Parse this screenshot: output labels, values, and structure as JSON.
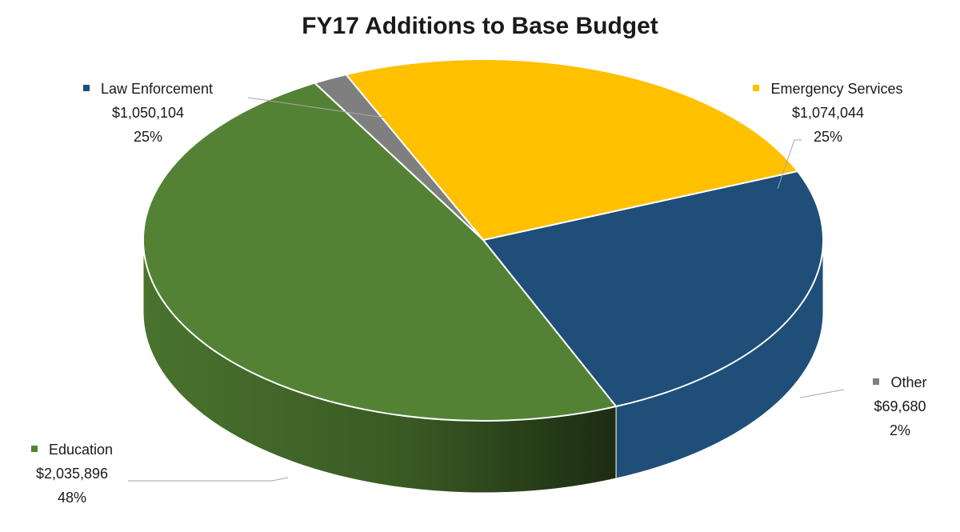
{
  "chart_data": {
    "type": "pie",
    "title": "FY17 Additions to Base Budget",
    "three_d": true,
    "slices": [
      {
        "name": "Law Enforcement",
        "value_label": "$1,050,104",
        "value": 1050104,
        "percent_label": "25%",
        "color": "#1F4E79"
      },
      {
        "name": "Emergency Services",
        "value_label": "$1,074,044",
        "value": 1074044,
        "percent_label": "25%",
        "color": "#FFC000"
      },
      {
        "name": "Other",
        "value_label": "$69,680",
        "value": 69680,
        "percent_label": "2%",
        "color": "#7F7F7F"
      },
      {
        "name": "Education",
        "value_label": "$2,035,896",
        "value": 2035896,
        "percent_label": "48%",
        "color": "#548235"
      }
    ],
    "legend": "none",
    "data_labels": "outside-with-leader-lines"
  }
}
